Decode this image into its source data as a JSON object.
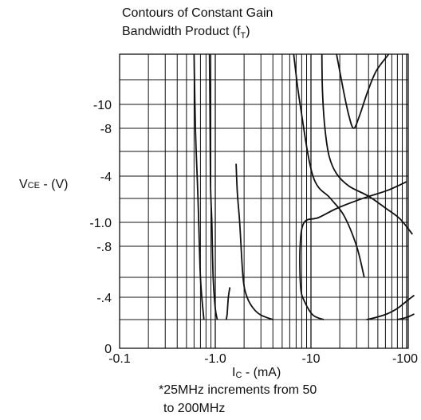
{
  "title": {
    "line1": "Contours of Constant Gain",
    "line2": "Bandwidth Product (f",
    "line2_sub": "T",
    "line2_end": ")"
  },
  "footnote": {
    "line1": "*25MHz increments from 50",
    "line2": "to 200MHz"
  },
  "chart_data": {
    "type": "line",
    "title": "Contours of Constant Gain Bandwidth Product (fT)",
    "xlabel": "IC - (mA)",
    "xlabel_main": "I",
    "xlabel_sub": "C",
    "xlabel_rest": " - (mA)",
    "ylabel": "VCE - (V)",
    "ylabel_main": "V",
    "ylabel_sub": "CE",
    "ylabel_rest": " - (V)",
    "x_scale": "log",
    "xlim": [
      -0.1,
      -120
    ],
    "x_ticks": [
      {
        "value": -0.1,
        "label": "-0.1"
      },
      {
        "value": -1.0,
        "label": "-1.0"
      },
      {
        "value": -10,
        "label": "-10"
      },
      {
        "value": -100,
        "label": "-100"
      }
    ],
    "y_ticks": [
      {
        "value": 0,
        "label": "0"
      },
      {
        "value": -0.4,
        "label": "-.4"
      },
      {
        "value": -0.8,
        "label": "-.8"
      },
      {
        "value": -1.0,
        "label": "-1.0"
      },
      {
        "value": -4,
        "label": "-4"
      },
      {
        "value": -8,
        "label": "-8"
      },
      {
        "value": -10,
        "label": "-10"
      }
    ],
    "y_scale": "nonuniform",
    "ylim": [
      0,
      -20
    ],
    "grid": true,
    "series": [
      {
        "x": [
          -0.6,
          -0.62,
          -0.66,
          -0.7,
          -0.76
        ],
        "y": [
          -20,
          -8,
          -2,
          -0.6,
          -0.2
        ]
      },
      {
        "x": [
          -1.05,
          -1.0,
          -0.95,
          -0.92,
          -0.9,
          -0.89,
          -0.88,
          -0.87
        ],
        "y": [
          -0.2,
          -0.3,
          -0.6,
          -1.0,
          -2,
          -4,
          -10,
          -20
        ]
      },
      {
        "x": [
          -1.3,
          -1.33,
          -1.37,
          -1.42
        ],
        "y": [
          -0.2,
          -0.25,
          -0.4,
          -0.5
        ]
      },
      {
        "x": [
          -4,
          -3,
          -2.5,
          -2.15,
          -1.95,
          -1.8,
          -1.7,
          -1.65
        ],
        "y": [
          -0.2,
          -0.24,
          -0.3,
          -0.4,
          -0.6,
          -1.0,
          -2.5,
          -5
        ]
      },
      {
        "x": [
          -6.6,
          -7.7,
          -10.5,
          -16,
          -22,
          -30,
          -36
        ],
        "y": [
          -20,
          -10,
          -4,
          -2,
          -1.3,
          -0.8,
          -0.6
        ]
      },
      {
        "x": [
          -100,
          -62,
          -36,
          -19,
          -12,
          -8.5,
          -7.7,
          -7.8,
          -8.6,
          -10.5,
          -13.6
        ],
        "y": [
          -3.5,
          -2.7,
          -2.05,
          -1.6,
          -1.2,
          -1.0,
          -0.8,
          -0.5,
          -0.36,
          -0.24,
          -0.2
        ]
      },
      {
        "x": [
          -115,
          -85,
          -60,
          -40,
          -25,
          -18.5,
          -15.5,
          -14,
          -13.2,
          -13
        ],
        "y": [
          -0.9,
          -1.15,
          -1.6,
          -2.2,
          -3.1,
          -4.2,
          -5.6,
          -8,
          -12,
          -20
        ]
      },
      {
        "x": [
          -18.5,
          -22,
          -25,
          -28,
          -32,
          -39,
          -48,
          -65
        ],
        "y": [
          -20,
          -12,
          -9,
          -8,
          -9,
          -12,
          -16,
          -20
        ]
      },
      {
        "x": [
          -38,
          -48,
          -62,
          -80,
          -105,
          -120
        ],
        "y": [
          -0.2,
          -0.22,
          -0.25,
          -0.3,
          -0.38,
          -0.42
        ]
      },
      {
        "x": [
          -80,
          -100,
          -120
        ],
        "y": [
          -0.2,
          -0.22,
          -0.25
        ]
      }
    ]
  }
}
